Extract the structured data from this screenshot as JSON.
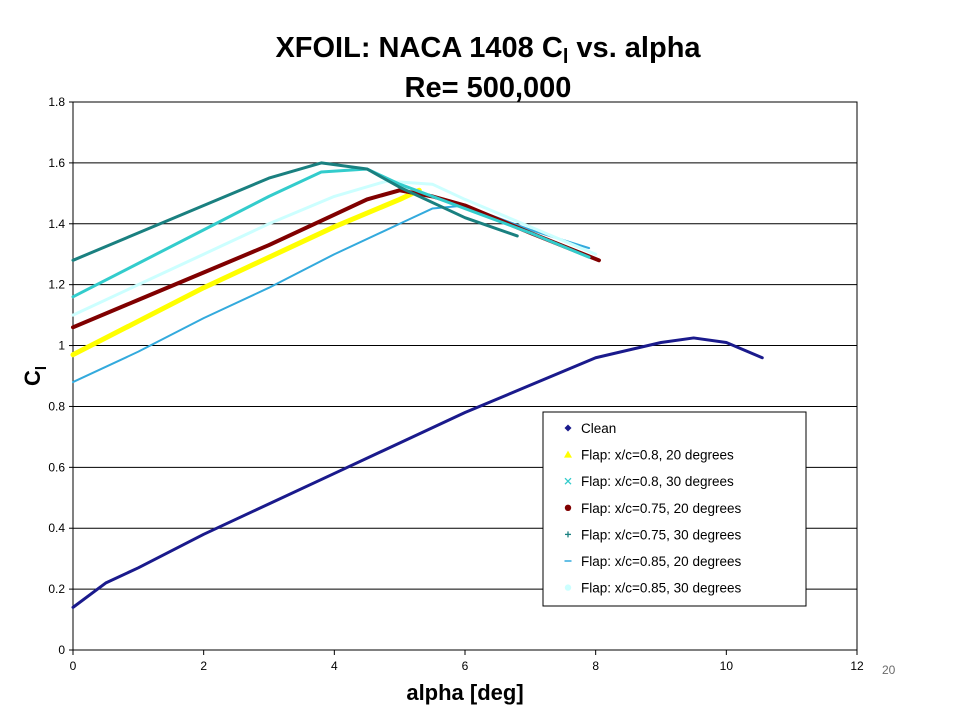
{
  "header": {
    "title_prefix": "XFOIL: NACA 1408 C",
    "title_sub": "l",
    "title_suffix": " vs. alpha",
    "subtitle": "Re= 500,000"
  },
  "page_number": "20",
  "chart_data": {
    "type": "line",
    "title": "XFOIL: NACA 1408 Cl vs. alpha",
    "subtitle": "Re= 500,000",
    "xlabel": "alpha [deg]",
    "ylabel": "Cl",
    "xlim": [
      0,
      12
    ],
    "ylim": [
      0,
      1.8
    ],
    "xticks": [
      0,
      2,
      4,
      6,
      8,
      10,
      12
    ],
    "yticks": [
      0,
      0.2,
      0.4,
      0.6,
      0.8,
      1,
      1.2,
      1.4,
      1.6,
      1.8
    ],
    "grid": "horizontal major gridlines",
    "legend_position": "bottom-right",
    "series": [
      {
        "name": "Clean",
        "color": "#1a1a8c",
        "marker": "diamond",
        "width": 3,
        "x": [
          0,
          0.5,
          1,
          2,
          3,
          4,
          5,
          6,
          7,
          8,
          9,
          9.5,
          10,
          10.55
        ],
        "y": [
          0.14,
          0.22,
          0.27,
          0.38,
          0.48,
          0.58,
          0.68,
          0.78,
          0.87,
          0.96,
          1.01,
          1.025,
          1.01,
          0.96
        ]
      },
      {
        "name": "Flap: x/c=0.8, 20 degrees",
        "color": "#ffff00",
        "marker": "triangle",
        "width": 5,
        "x": [
          0,
          1,
          2,
          3,
          4,
          5,
          5.3
        ],
        "y": [
          0.97,
          1.08,
          1.19,
          1.29,
          1.39,
          1.48,
          1.51
        ]
      },
      {
        "name": "Flap: x/c=0.8, 30 degrees",
        "color": "#33cccc",
        "marker": "x",
        "width": 3,
        "x": [
          0,
          1,
          2,
          3,
          3.8,
          4.5,
          5,
          6,
          7,
          7.9
        ],
        "y": [
          1.16,
          1.27,
          1.38,
          1.49,
          1.57,
          1.58,
          1.53,
          1.45,
          1.37,
          1.29
        ]
      },
      {
        "name": "Flap: x/c=0.75, 20 degrees",
        "color": "#800000",
        "marker": "circle",
        "width": 4,
        "x": [
          0,
          1,
          2,
          3,
          4,
          4.5,
          5,
          5.5,
          6,
          7,
          8.05
        ],
        "y": [
          1.06,
          1.15,
          1.24,
          1.33,
          1.43,
          1.48,
          1.51,
          1.49,
          1.46,
          1.37,
          1.28
        ]
      },
      {
        "name": "Flap: x/c=0.75, 30 degrees",
        "color": "#1a8080",
        "marker": "plus",
        "width": 3,
        "x": [
          0,
          1,
          2,
          3,
          3.8,
          4.5,
          5,
          6,
          6.8
        ],
        "y": [
          1.28,
          1.37,
          1.46,
          1.55,
          1.6,
          1.58,
          1.52,
          1.42,
          1.36
        ]
      },
      {
        "name": "Flap: x/c=0.85, 20 degrees",
        "color": "#33aadd",
        "marker": "dash",
        "width": 2,
        "x": [
          0,
          1,
          2,
          3,
          4,
          5,
          5.5,
          6,
          7,
          7.9
        ],
        "y": [
          0.88,
          0.98,
          1.09,
          1.19,
          1.3,
          1.4,
          1.45,
          1.46,
          1.38,
          1.32
        ]
      },
      {
        "name": "Flap: x/c=0.85, 30 degrees",
        "color": "#ccffff",
        "marker": "circle",
        "width": 3,
        "x": [
          0,
          1,
          2,
          3,
          4,
          4.8,
          5.5,
          6,
          7,
          8
        ],
        "y": [
          1.1,
          1.2,
          1.3,
          1.4,
          1.49,
          1.54,
          1.53,
          1.48,
          1.39,
          1.3
        ]
      }
    ]
  }
}
